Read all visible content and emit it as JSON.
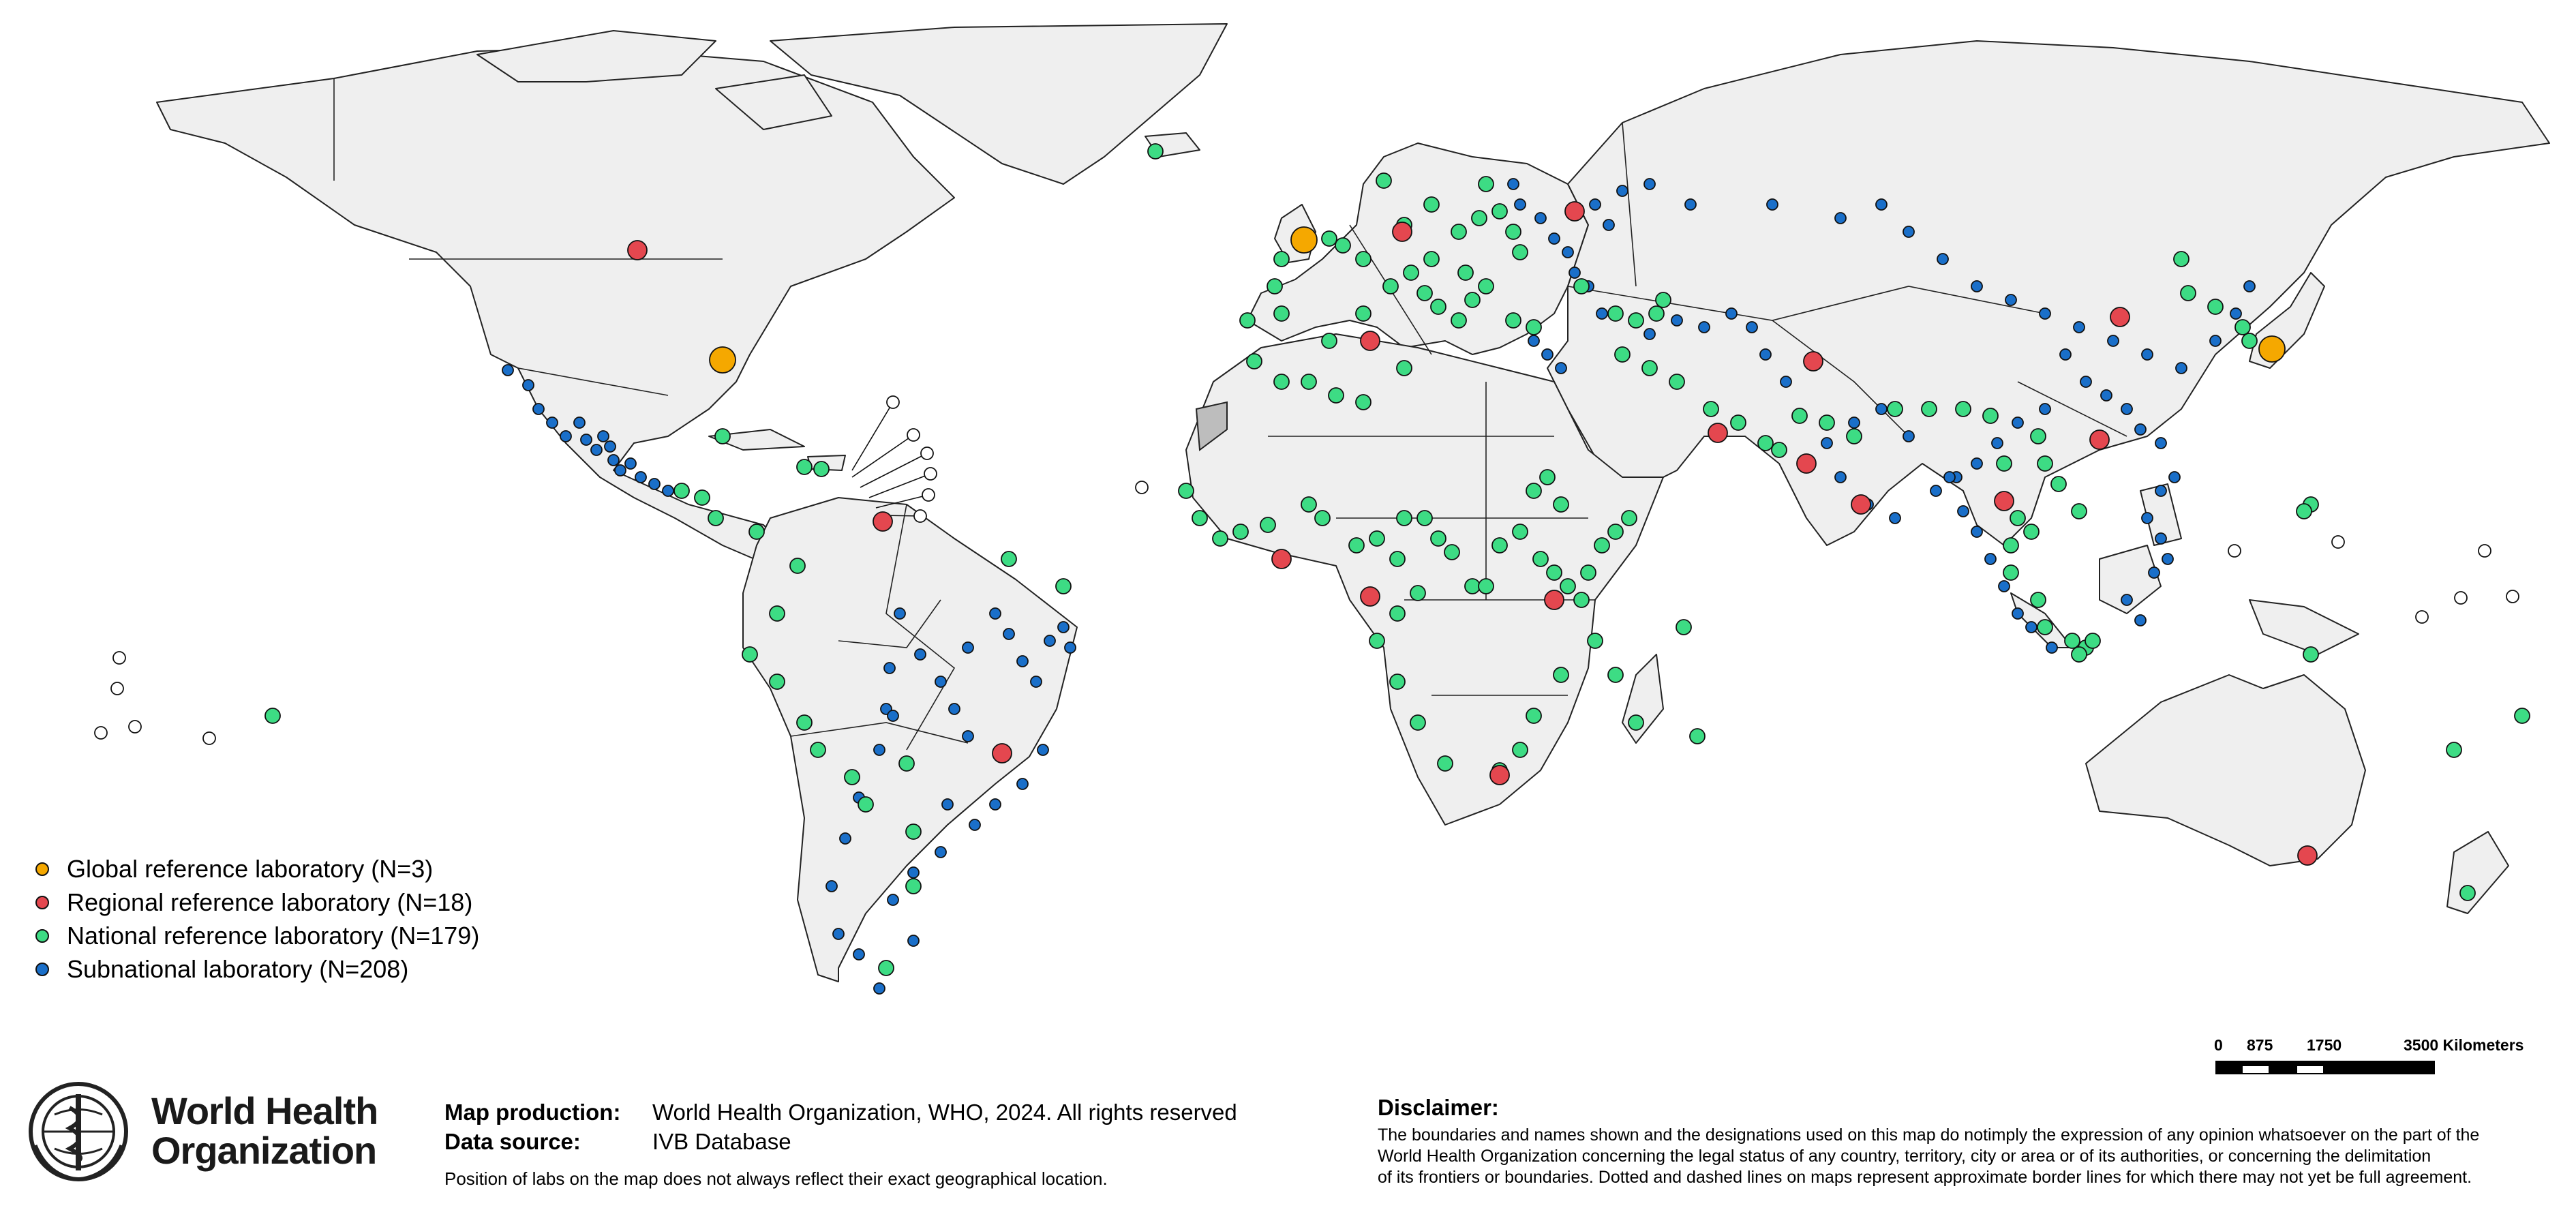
{
  "legend": [
    {
      "label": "Global reference laboratory (N=3)",
      "color": "#f5a800"
    },
    {
      "label": "Regional reference laboratory (N=18)",
      "color": "#e4474f"
    },
    {
      "label": "National reference laboratory (N=179)",
      "color": "#3ddc84"
    },
    {
      "label": "Subnational laboratory (N=208)",
      "color": "#1a6fc9"
    }
  ],
  "colors": {
    "global": "#f5a800",
    "regional": "#e4474f",
    "national": "#3ddc84",
    "subnational": "#1a6fc9",
    "land": "#efefef",
    "disputed": "#bdbdbd"
  },
  "logo": {
    "line1": "World Health",
    "line2": "Organization"
  },
  "credits": {
    "production_key": "Map production:",
    "production_value": "World Health Organization, WHO, 2024. All rights reserved",
    "source_key": "Data source:",
    "source_value": "IVB Database",
    "note": "Position of labs on the map does not always reflect their exact geographical location."
  },
  "disclaimer": {
    "title": "Disclaimer:",
    "line1": "The boundaries and names shown and the designations used on this map do notimply the expression of any opinion whatsoever on the part of the",
    "line2": "World Health Organization concerning the legal status of any country, territory, city or area or of its authorities, or concerning the delimitation",
    "line3": "of its frontiers or boundaries. Dotted and dashed lines on maps represent approximate border lines for which there may not yet be full agreement."
  },
  "scalebar": {
    "labels": [
      "0",
      "875",
      "1750",
      "3500 Kilometers"
    ]
  }
}
